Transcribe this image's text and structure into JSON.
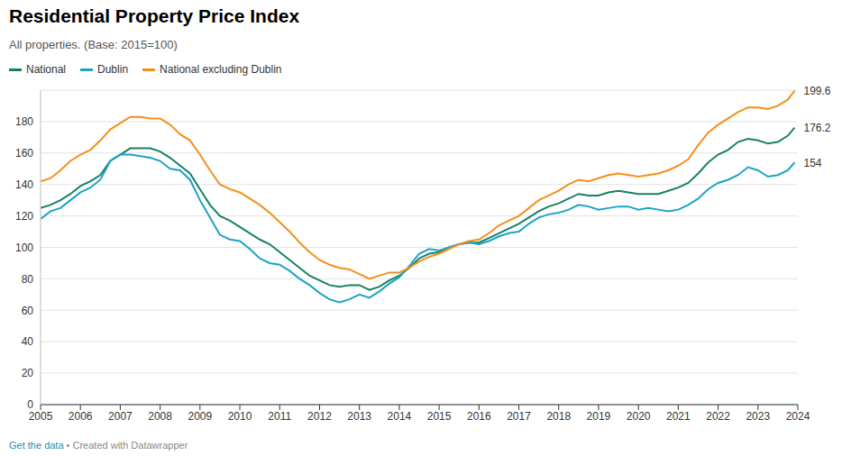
{
  "chart_data": {
    "type": "line",
    "title": "Residential Property Price Index",
    "subtitle": "All properties. (Base: 2015=100)",
    "source": "Get the data • Created with Datawrapper",
    "legend": "top-left",
    "grid": true,
    "x": [
      2005,
      2005.25,
      2005.5,
      2005.75,
      2006,
      2006.25,
      2006.5,
      2006.75,
      2007,
      2007.25,
      2007.5,
      2007.75,
      2008,
      2008.25,
      2008.5,
      2008.75,
      2009,
      2009.25,
      2009.5,
      2009.75,
      2010,
      2010.25,
      2010.5,
      2010.75,
      2011,
      2011.25,
      2011.5,
      2011.75,
      2012,
      2012.25,
      2012.5,
      2012.75,
      2013,
      2013.25,
      2013.5,
      2013.75,
      2014,
      2014.25,
      2014.5,
      2014.75,
      2015,
      2015.25,
      2015.5,
      2015.75,
      2016,
      2016.25,
      2016.5,
      2016.75,
      2017,
      2017.25,
      2017.5,
      2017.75,
      2018,
      2018.25,
      2018.5,
      2018.75,
      2019,
      2019.25,
      2019.5,
      2019.75,
      2020,
      2020.25,
      2020.5,
      2020.75,
      2021,
      2021.25,
      2021.5,
      2021.75,
      2022,
      2022.25,
      2022.5,
      2022.75,
      2023,
      2023.25,
      2023.5,
      2023.75,
      2023.92
    ],
    "series": [
      {
        "name": "National",
        "color": "#168067",
        "values": [
          125,
          127,
          130,
          134,
          139,
          142,
          146,
          155,
          159,
          163,
          163,
          163,
          161,
          157,
          152,
          147,
          137,
          127,
          120,
          117,
          113,
          109,
          105,
          102,
          97,
          92,
          87,
          82,
          79,
          76,
          75,
          76,
          76,
          73,
          75,
          79,
          82,
          87,
          93,
          96,
          97,
          100,
          102,
          103,
          103,
          106,
          109,
          112,
          115,
          119,
          123,
          126,
          128,
          131,
          134,
          133,
          133,
          135,
          136,
          135,
          134,
          134,
          134,
          136,
          138,
          141,
          147,
          154,
          159,
          162,
          167,
          169,
          168,
          166,
          167,
          171,
          176.2
        ]
      },
      {
        "name": "Dublin",
        "color": "#1ba3c6",
        "values": [
          118,
          123,
          125,
          130,
          135,
          138,
          143,
          155,
          159,
          159,
          158,
          157,
          155,
          150,
          149,
          143,
          130,
          119,
          108,
          105,
          104,
          99,
          93,
          90,
          89,
          85,
          80,
          76,
          71,
          67,
          65,
          67,
          70,
          68,
          72,
          77,
          81,
          88,
          96,
          99,
          98,
          100,
          102,
          103,
          102,
          104,
          107,
          109,
          110,
          115,
          119,
          121,
          122,
          124,
          127,
          126,
          124,
          125,
          126,
          126,
          124,
          125,
          124,
          123,
          124,
          127,
          131,
          137,
          141,
          143,
          146,
          151,
          149,
          145,
          146,
          149,
          154
        ]
      },
      {
        "name": "National excluding Dublin",
        "color": "#f39019",
        "values": [
          142,
          144,
          149,
          155,
          159,
          162,
          168,
          175,
          179,
          183,
          183,
          182,
          182,
          178,
          172,
          168,
          159,
          149,
          140,
          137,
          135,
          131,
          127,
          122,
          116,
          110,
          103,
          97,
          92,
          89,
          87,
          86,
          83,
          80,
          82,
          84,
          84,
          87,
          91,
          94,
          96,
          99,
          102,
          104,
          105,
          109,
          114,
          117,
          120,
          125,
          130,
          133,
          136,
          140,
          143,
          142,
          144,
          146,
          147,
          146,
          145,
          146,
          147,
          149,
          152,
          156,
          165,
          173,
          178,
          182,
          186,
          189,
          189,
          188,
          190,
          194,
          199.6
        ]
      }
    ],
    "xlim": [
      2005,
      2024
    ],
    "xticks": [
      2005,
      2006,
      2007,
      2008,
      2009,
      2010,
      2011,
      2012,
      2013,
      2014,
      2015,
      2016,
      2017,
      2018,
      2019,
      2020,
      2021,
      2022,
      2023,
      2024
    ],
    "ylim": [
      0,
      200
    ],
    "yticks": [
      0,
      20,
      40,
      60,
      80,
      100,
      120,
      140,
      160,
      180
    ],
    "annotations": [
      {
        "x": 2023.92,
        "y": 199.6,
        "text": "199.6"
      },
      {
        "x": 2023.92,
        "y": 176.2,
        "text": "176.2"
      },
      {
        "x": 2023.92,
        "y": 154,
        "text": "154"
      }
    ]
  }
}
